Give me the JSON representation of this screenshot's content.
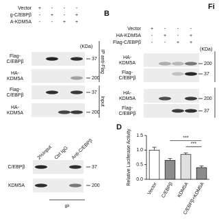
{
  "figure_label": "Fi",
  "panel_a": {
    "rows": [
      {
        "label": "Vector",
        "signs": [
          "+",
          "-",
          "-",
          "-"
        ]
      },
      {
        "label": "g-C/EBPβ",
        "signs": [
          "-",
          "+",
          "-",
          "+"
        ]
      },
      {
        "label": "A-KDM5A",
        "signs": [
          "-",
          "-",
          "+",
          "+"
        ]
      }
    ],
    "unit": "(KDa)",
    "blots": [
      {
        "label": [
          "Flag-",
          "C/EBPβ"
        ],
        "marker": 37
      },
      {
        "label": [
          "HA-",
          "KDM5A"
        ],
        "marker": 200
      },
      {
        "label": [
          "Flag-",
          "C/EBPβ"
        ],
        "marker": 37
      },
      {
        "label": [
          "HA-",
          "KDM5A"
        ],
        "marker": 200
      }
    ],
    "groups": [
      "IP anti-Flag",
      "Input"
    ]
  },
  "panel_b": {
    "label": "B",
    "rows": [
      {
        "label": "Vector",
        "signs": [
          "+",
          "-",
          "-",
          "-"
        ]
      },
      {
        "label": "HA-KDM5A",
        "signs": [
          "-",
          "+",
          "-",
          "+"
        ]
      },
      {
        "label": "Flag-C/EBPβ",
        "signs": [
          "-",
          "-",
          "+",
          "+"
        ]
      }
    ],
    "unit": "(KDa)",
    "blots": [
      {
        "label": [
          "HA-",
          "KDM5A"
        ],
        "marker": 200
      },
      {
        "label": [
          "Flag-",
          "C/EBPβ"
        ],
        "marker": 37
      },
      {
        "label": [
          "HA-",
          "KDM5A"
        ],
        "marker": 200
      },
      {
        "label": [
          "Flag-",
          "C/EBPβ"
        ],
        "marker": 37
      }
    ]
  },
  "panel_c": {
    "lanes": [
      "2%Input",
      "Ctrl IgG",
      "Anti-C/EBPβ"
    ],
    "blots": [
      {
        "label": [
          "C/EBPβ"
        ],
        "marker": 37
      },
      {
        "label": [
          "KDM5A"
        ],
        "marker": 200
      }
    ],
    "group": "IP"
  },
  "chart_data": {
    "type": "bar",
    "panel_label": "D",
    "y_label": "Relative Luciferase Activity",
    "categories": [
      "Vector",
      "C/EBPβ",
      "KDM5A",
      "C/EBPβ+KDM5A"
    ],
    "values": [
      1.0,
      0.65,
      0.85,
      0.4
    ],
    "errors": [
      0.1,
      0.06,
      0.05,
      0.06
    ],
    "colors": [
      "#ffffff",
      "#8c8c8c",
      "#e0e0e0",
      "#8c8c8c"
    ],
    "ylim": [
      0,
      1.5
    ],
    "yticks": [
      {
        "value": 0,
        "label": "0.0"
      },
      {
        "value": 0.5,
        "label": "0.5"
      },
      {
        "value": 1,
        "label": "1.0"
      },
      {
        "value": 1.5,
        "label": "1.5"
      }
    ],
    "annotations": [
      "***",
      "***"
    ]
  }
}
